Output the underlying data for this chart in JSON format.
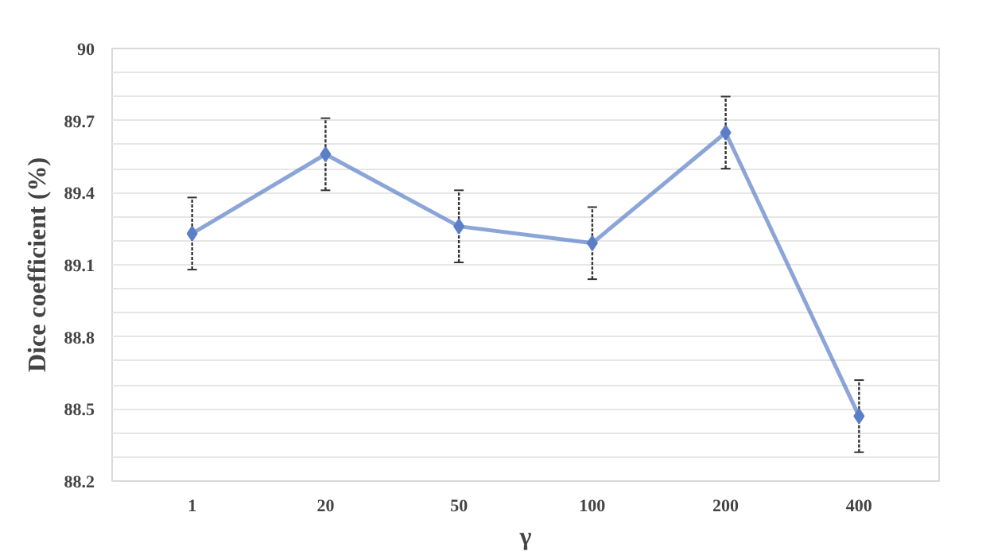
{
  "chart_data": {
    "type": "line",
    "xlabel": "γ",
    "ylabel": "Dice coefficient (%)",
    "categories": [
      "1",
      "20",
      "50",
      "100",
      "200",
      "400"
    ],
    "series": [
      {
        "color": "#5b7fc7",
        "values": [
          89.23,
          89.56,
          89.26,
          89.19,
          89.65,
          88.47
        ],
        "errors": [
          0.15,
          0.15,
          0.15,
          0.15,
          0.15,
          0.15
        ]
      }
    ],
    "ylim": [
      88.2,
      90
    ],
    "yticks": [
      88.2,
      {
        "value": 88.3,
        "label": null
      },
      {
        "value": 88.4,
        "label": null
      },
      88.5,
      {
        "value": 88.6,
        "label": null
      },
      {
        "value": 88.7,
        "label": null
      },
      88.8,
      {
        "value": 88.9,
        "label": null
      },
      {
        "value": 89.0,
        "label": null
      },
      89.1,
      {
        "value": 89.2,
        "label": null
      },
      {
        "value": 89.3,
        "label": null
      },
      89.4,
      {
        "value": 89.5,
        "label": null
      },
      {
        "value": 89.6,
        "label": null
      },
      89.7,
      {
        "value": 89.8,
        "label": null
      },
      {
        "value": 89.9,
        "label": null
      },
      90
    ],
    "grid": "y",
    "marker": "diamond",
    "line_style": "solid"
  }
}
